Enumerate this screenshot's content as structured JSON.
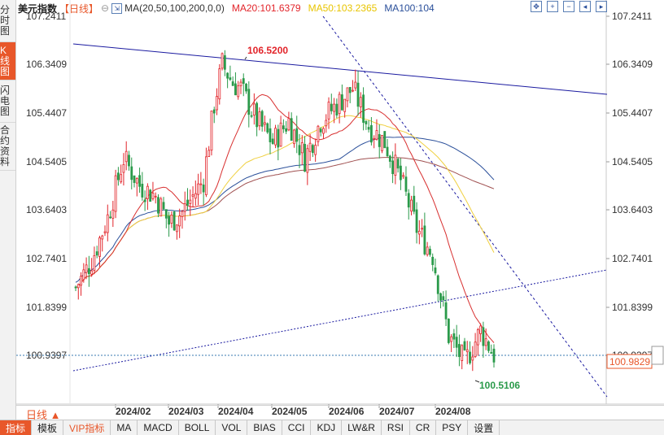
{
  "sidebar_tabs": [
    {
      "label": "分时图",
      "active": false
    },
    {
      "label": "K线图",
      "active": true
    },
    {
      "label": "闪电图",
      "active": false
    },
    {
      "label": "合约资料",
      "active": false
    }
  ],
  "header": {
    "name": "美元指数",
    "period": "【日线】",
    "ma_params": "MA(20,50,100,200,0,0)",
    "ma20": "MA20:101.6379",
    "ma50": "MA50:103.2365",
    "ma100": "MA100:104"
  },
  "colors": {
    "up": "#e2242a",
    "down": "#2a9a4a",
    "ma20": "#d83030",
    "ma50": "#f0d040",
    "ma100": "#2a4f9a",
    "ma200": "#a05050",
    "trendline": "#1a1aa0",
    "accent": "#e8572a"
  },
  "period_selector": "日线 ▲",
  "bottom_tabs": [
    "指标",
    "模板",
    "VIP指标",
    "MA",
    "MACD",
    "BOLL",
    "VOL",
    "BIAS",
    "CCI",
    "KDJ",
    "LW&R",
    "RSI",
    "CR",
    "PSY",
    "设置"
  ],
  "chart_data": {
    "type": "candlestick",
    "y_ticks": [
      "107.2411",
      "106.3409",
      "105.4407",
      "104.5405",
      "103.6403",
      "102.7401",
      "101.8399",
      "100.9397"
    ],
    "ylim": [
      100.35,
      107.45
    ],
    "x_ticks": [
      "2024/02",
      "2024/03",
      "2024/04",
      "2024/05",
      "2024/06",
      "2024/07",
      "2024/08"
    ],
    "last_price": "100.9829",
    "annotations": {
      "high": "106.5200",
      "low": "100.5106"
    },
    "grid": false,
    "series_shown": [
      "MA20",
      "MA50",
      "MA100",
      "MA200"
    ]
  }
}
